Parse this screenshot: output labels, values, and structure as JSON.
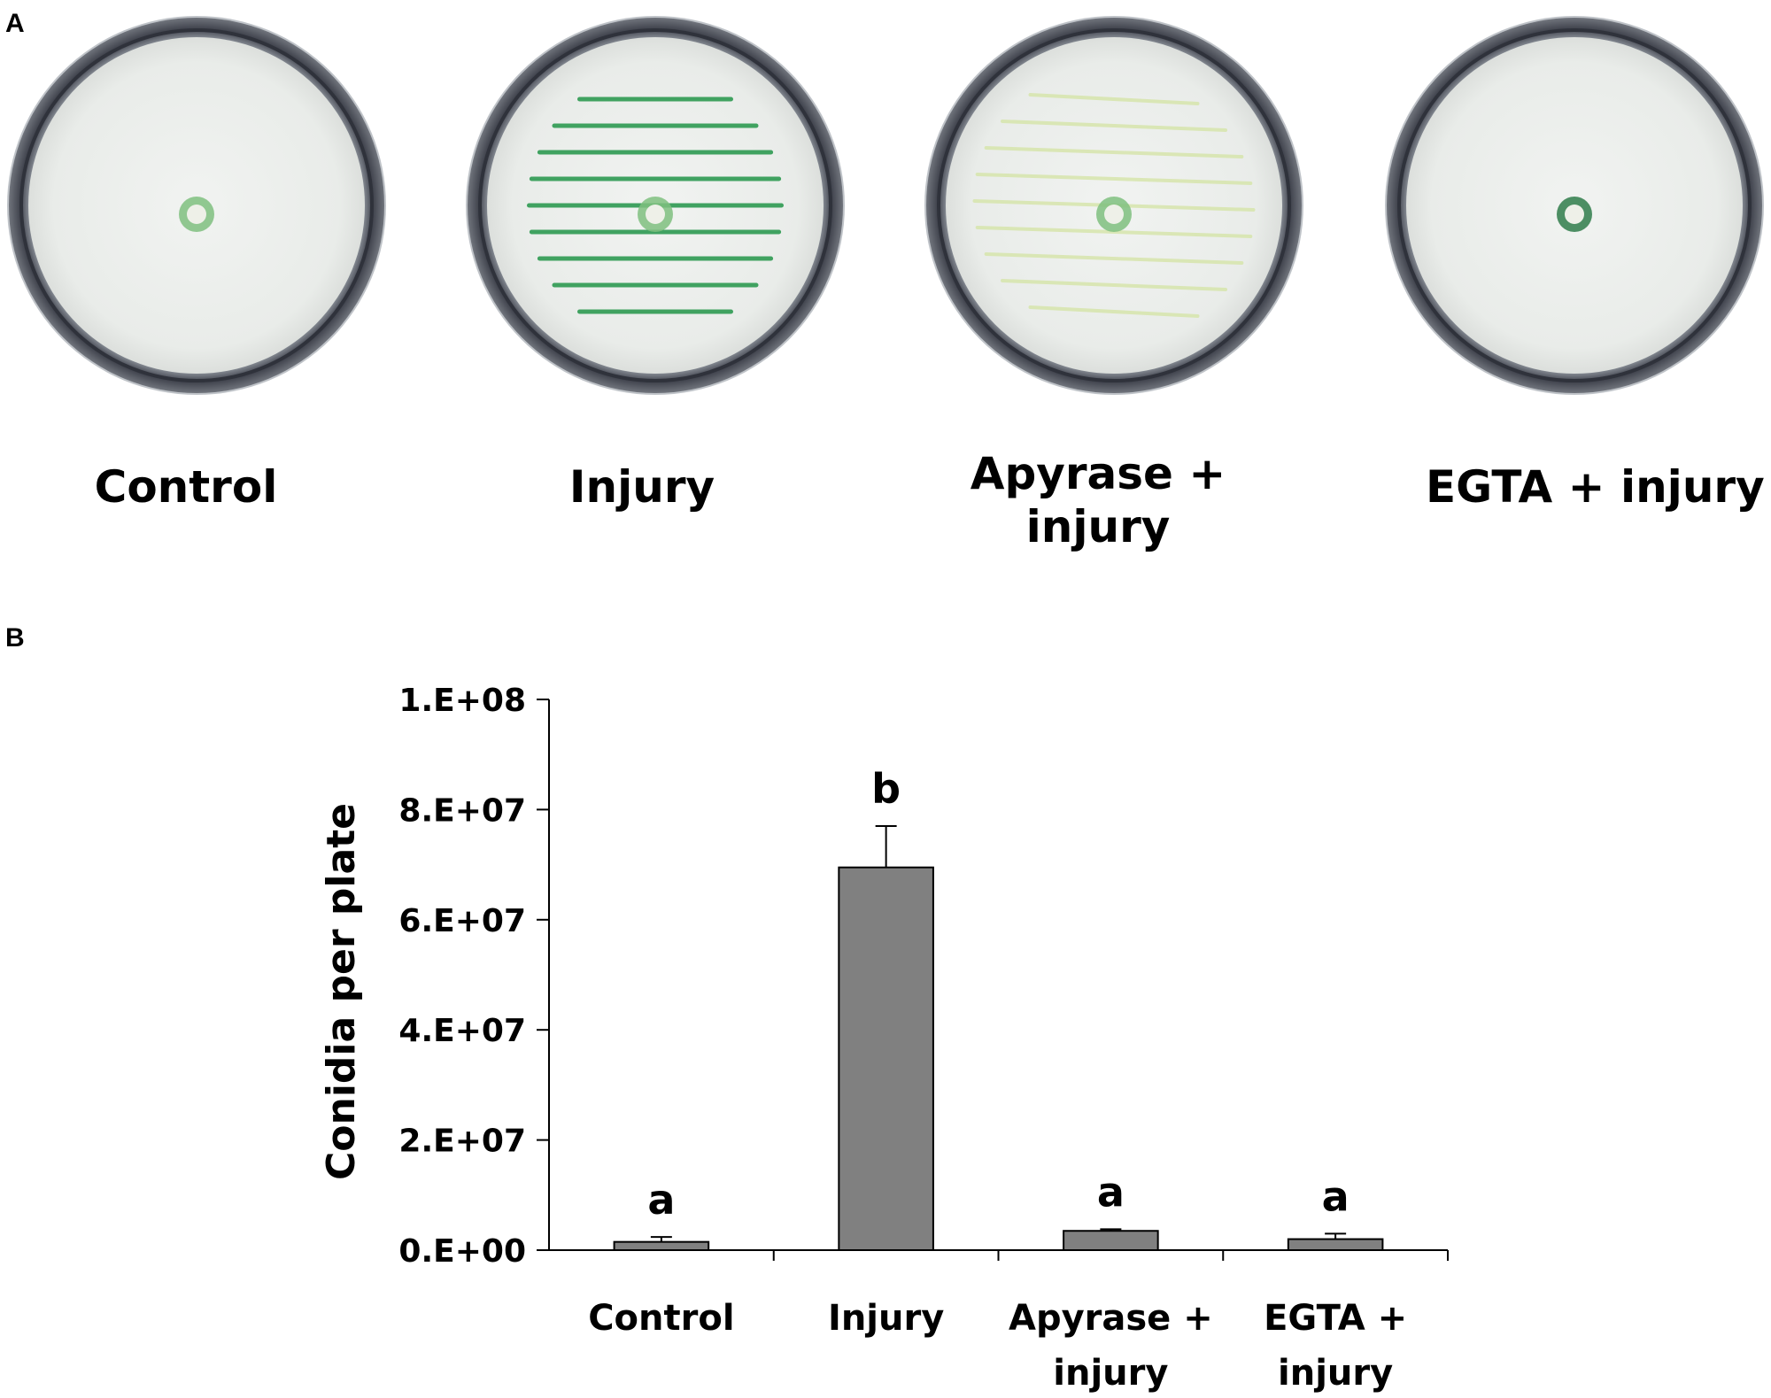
{
  "panels": {
    "a_label": "A",
    "b_label": "B"
  },
  "plates": [
    {
      "label": "Control",
      "treatment": "control"
    },
    {
      "label": "Injury",
      "treatment": "injury"
    },
    {
      "label": "Apyrase + injury",
      "treatment": "apyrase"
    },
    {
      "label": "EGTA + injury",
      "treatment": "egta"
    }
  ],
  "colors": {
    "bar": "#808080",
    "plate_rim": "#4a4d57",
    "agar": "#ecefec",
    "streak_green": "#2e9a52",
    "streak_faint": "#d8e6b0"
  },
  "chart_data": {
    "type": "bar",
    "categories": [
      "Control",
      "Injury",
      "Apyrase + injury",
      "EGTA + injury"
    ],
    "values": [
      1500000,
      69500000,
      3500000,
      2000000
    ],
    "errors": [
      900000,
      7500000,
      300000,
      1000000
    ],
    "significance": [
      "a",
      "b",
      "a",
      "a"
    ],
    "ylabel": "Conidia per plate",
    "ylim": [
      0,
      100000000
    ],
    "yticks": [
      0,
      20000000,
      40000000,
      60000000,
      80000000,
      100000000
    ],
    "ytick_labels": [
      "0.E+00",
      "2.E+07",
      "4.E+07",
      "6.E+07",
      "8.E+07",
      "1.E+08"
    ],
    "grid": false
  }
}
